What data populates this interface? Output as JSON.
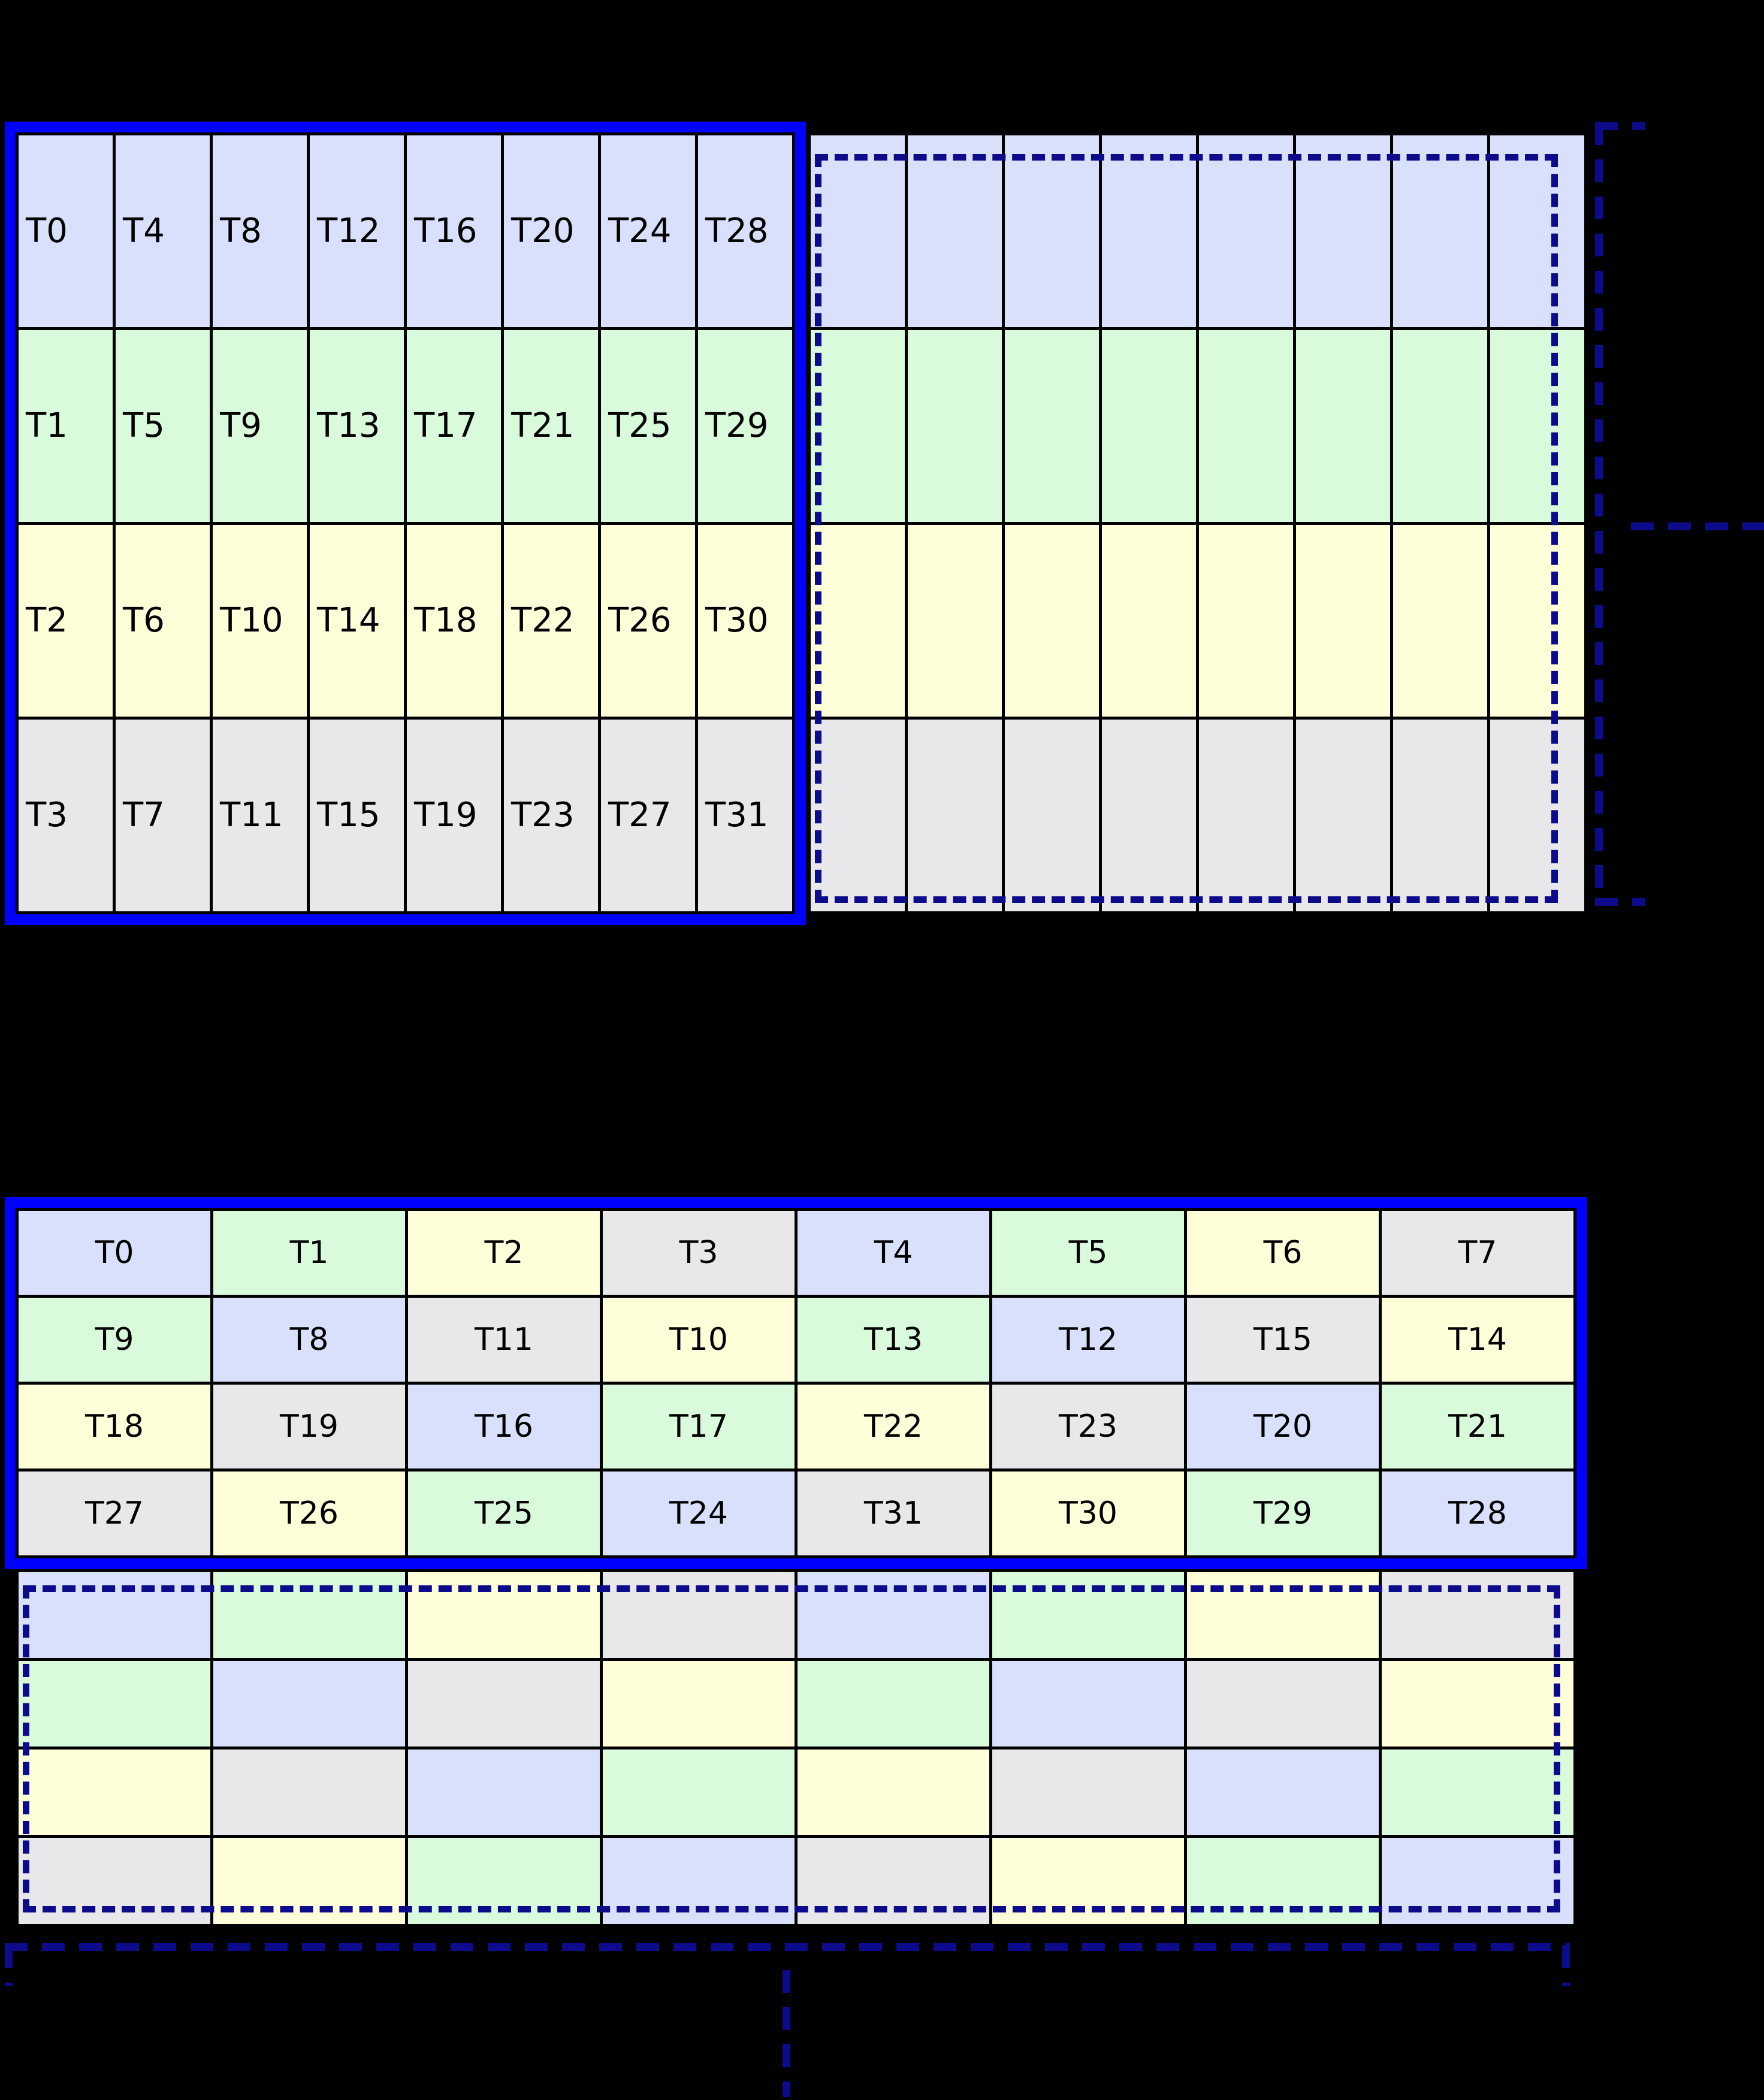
{
  "palette": {
    "blue": "#d9e0fb",
    "green": "#d9fbdc",
    "yellow": "#fefed9",
    "gray": "#e8e8eb",
    "frame_blue": "#0000ff",
    "dash_navy": "#0b0b8b",
    "grid_line": "#000000",
    "text": "#000000"
  },
  "grid1": {
    "rows": [
      {
        "color": "blue",
        "labels": [
          "T0",
          "T4",
          "T8",
          "T12",
          "T16",
          "T20",
          "T24",
          "T28"
        ]
      },
      {
        "color": "green",
        "labels": [
          "T1",
          "T5",
          "T9",
          "T13",
          "T17",
          "T21",
          "T25",
          "T29"
        ]
      },
      {
        "color": "yellow",
        "labels": [
          "T2",
          "T6",
          "T10",
          "T14",
          "T18",
          "T22",
          "T26",
          "T30"
        ]
      },
      {
        "color": "gray",
        "labels": [
          "T3",
          "T7",
          "T11",
          "T15",
          "T19",
          "T23",
          "T27",
          "T31"
        ]
      }
    ],
    "next_tile_row_colors": [
      "blue",
      "green",
      "yellow",
      "gray"
    ],
    "next_tile_cols": 8
  },
  "grid2": {
    "rows": [
      {
        "cells": [
          {
            "label": "T0",
            "color": "blue"
          },
          {
            "label": "T1",
            "color": "green"
          },
          {
            "label": "T2",
            "color": "yellow"
          },
          {
            "label": "T3",
            "color": "gray"
          },
          {
            "label": "T4",
            "color": "blue"
          },
          {
            "label": "T5",
            "color": "green"
          },
          {
            "label": "T6",
            "color": "yellow"
          },
          {
            "label": "T7",
            "color": "gray"
          }
        ]
      },
      {
        "cells": [
          {
            "label": "T9",
            "color": "green"
          },
          {
            "label": "T8",
            "color": "blue"
          },
          {
            "label": "T11",
            "color": "gray"
          },
          {
            "label": "T10",
            "color": "yellow"
          },
          {
            "label": "T13",
            "color": "green"
          },
          {
            "label": "T12",
            "color": "blue"
          },
          {
            "label": "T15",
            "color": "gray"
          },
          {
            "label": "T14",
            "color": "yellow"
          }
        ]
      },
      {
        "cells": [
          {
            "label": "T18",
            "color": "yellow"
          },
          {
            "label": "T19",
            "color": "gray"
          },
          {
            "label": "T16",
            "color": "blue"
          },
          {
            "label": "T17",
            "color": "green"
          },
          {
            "label": "T22",
            "color": "yellow"
          },
          {
            "label": "T23",
            "color": "gray"
          },
          {
            "label": "T20",
            "color": "blue"
          },
          {
            "label": "T21",
            "color": "green"
          }
        ]
      },
      {
        "cells": [
          {
            "label": "T27",
            "color": "gray"
          },
          {
            "label": "T26",
            "color": "yellow"
          },
          {
            "label": "T25",
            "color": "green"
          },
          {
            "label": "T24",
            "color": "blue"
          },
          {
            "label": "T31",
            "color": "gray"
          },
          {
            "label": "T30",
            "color": "yellow"
          },
          {
            "label": "T29",
            "color": "green"
          },
          {
            "label": "T28",
            "color": "blue"
          }
        ]
      }
    ]
  },
  "grid2_extra": {
    "rows": [
      {
        "colors": [
          "blue",
          "green",
          "yellow",
          "gray",
          "blue",
          "green",
          "yellow",
          "gray"
        ]
      },
      {
        "colors": [
          "green",
          "blue",
          "gray",
          "yellow",
          "green",
          "blue",
          "gray",
          "yellow"
        ]
      },
      {
        "colors": [
          "yellow",
          "gray",
          "blue",
          "green",
          "yellow",
          "gray",
          "blue",
          "green"
        ]
      },
      {
        "colors": [
          "gray",
          "yellow",
          "green",
          "blue",
          "gray",
          "yellow",
          "green",
          "blue"
        ]
      }
    ]
  }
}
